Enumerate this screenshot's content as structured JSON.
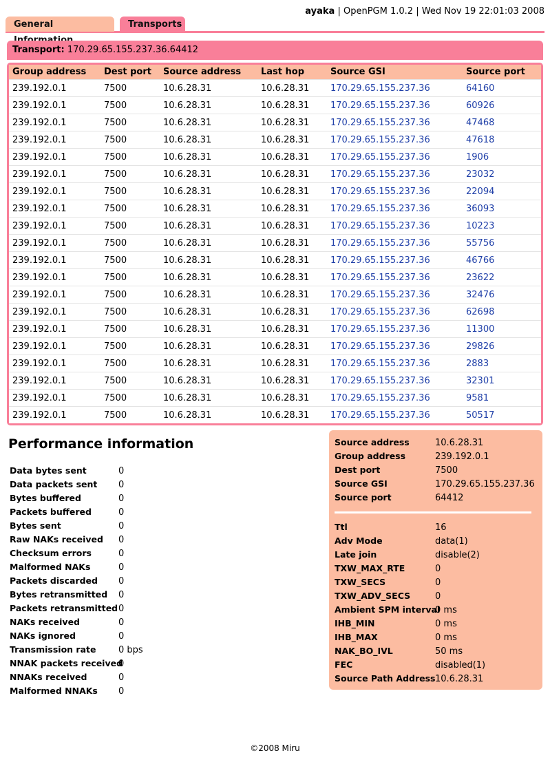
{
  "header": {
    "host": "ayaka",
    "product": "OpenPGM 1.0.2",
    "datetime": "Wed Nov 19 22:01:03 2008",
    "separator": "|"
  },
  "tabs": [
    {
      "label": "General Information"
    },
    {
      "label": "Transports"
    }
  ],
  "transport": {
    "label": "Transport:",
    "value": "170.29.65.155.237.36.64412"
  },
  "peers": {
    "columns": [
      "Group address",
      "Dest port",
      "Source address",
      "Last hop",
      "Source GSI",
      "Source port"
    ],
    "rows": [
      [
        "239.192.0.1",
        "7500",
        "10.6.28.31",
        "10.6.28.31",
        "170.29.65.155.237.36",
        "64160"
      ],
      [
        "239.192.0.1",
        "7500",
        "10.6.28.31",
        "10.6.28.31",
        "170.29.65.155.237.36",
        "60926"
      ],
      [
        "239.192.0.1",
        "7500",
        "10.6.28.31",
        "10.6.28.31",
        "170.29.65.155.237.36",
        "47468"
      ],
      [
        "239.192.0.1",
        "7500",
        "10.6.28.31",
        "10.6.28.31",
        "170.29.65.155.237.36",
        "47618"
      ],
      [
        "239.192.0.1",
        "7500",
        "10.6.28.31",
        "10.6.28.31",
        "170.29.65.155.237.36",
        "1906"
      ],
      [
        "239.192.0.1",
        "7500",
        "10.6.28.31",
        "10.6.28.31",
        "170.29.65.155.237.36",
        "23032"
      ],
      [
        "239.192.0.1",
        "7500",
        "10.6.28.31",
        "10.6.28.31",
        "170.29.65.155.237.36",
        "22094"
      ],
      [
        "239.192.0.1",
        "7500",
        "10.6.28.31",
        "10.6.28.31",
        "170.29.65.155.237.36",
        "36093"
      ],
      [
        "239.192.0.1",
        "7500",
        "10.6.28.31",
        "10.6.28.31",
        "170.29.65.155.237.36",
        "10223"
      ],
      [
        "239.192.0.1",
        "7500",
        "10.6.28.31",
        "10.6.28.31",
        "170.29.65.155.237.36",
        "55756"
      ],
      [
        "239.192.0.1",
        "7500",
        "10.6.28.31",
        "10.6.28.31",
        "170.29.65.155.237.36",
        "46766"
      ],
      [
        "239.192.0.1",
        "7500",
        "10.6.28.31",
        "10.6.28.31",
        "170.29.65.155.237.36",
        "23622"
      ],
      [
        "239.192.0.1",
        "7500",
        "10.6.28.31",
        "10.6.28.31",
        "170.29.65.155.237.36",
        "32476"
      ],
      [
        "239.192.0.1",
        "7500",
        "10.6.28.31",
        "10.6.28.31",
        "170.29.65.155.237.36",
        "62698"
      ],
      [
        "239.192.0.1",
        "7500",
        "10.6.28.31",
        "10.6.28.31",
        "170.29.65.155.237.36",
        "11300"
      ],
      [
        "239.192.0.1",
        "7500",
        "10.6.28.31",
        "10.6.28.31",
        "170.29.65.155.237.36",
        "29826"
      ],
      [
        "239.192.0.1",
        "7500",
        "10.6.28.31",
        "10.6.28.31",
        "170.29.65.155.237.36",
        "2883"
      ],
      [
        "239.192.0.1",
        "7500",
        "10.6.28.31",
        "10.6.28.31",
        "170.29.65.155.237.36",
        "32301"
      ],
      [
        "239.192.0.1",
        "7500",
        "10.6.28.31",
        "10.6.28.31",
        "170.29.65.155.237.36",
        "9581"
      ],
      [
        "239.192.0.1",
        "7500",
        "10.6.28.31",
        "10.6.28.31",
        "170.29.65.155.237.36",
        "50517"
      ]
    ]
  },
  "performance": {
    "title": "Performance information",
    "items": [
      {
        "label": "Data bytes sent",
        "value": "0"
      },
      {
        "label": "Data packets sent",
        "value": "0"
      },
      {
        "label": "Bytes buffered",
        "value": "0"
      },
      {
        "label": "Packets buffered",
        "value": "0"
      },
      {
        "label": "Bytes sent",
        "value": "0"
      },
      {
        "label": "Raw NAKs received",
        "value": "0"
      },
      {
        "label": "Checksum errors",
        "value": "0"
      },
      {
        "label": "Malformed NAKs",
        "value": "0"
      },
      {
        "label": "Packets discarded",
        "value": "0"
      },
      {
        "label": "Bytes retransmitted",
        "value": "0"
      },
      {
        "label": "Packets retransmitted",
        "value": "0"
      },
      {
        "label": "NAKs received",
        "value": "0"
      },
      {
        "label": "NAKs ignored",
        "value": "0"
      },
      {
        "label": "Transmission rate",
        "value": "0 bps"
      },
      {
        "label": "NNAK packets received",
        "value": "0"
      },
      {
        "label": "NNAKs received",
        "value": "0"
      },
      {
        "label": "Malformed NNAKs",
        "value": "0"
      }
    ]
  },
  "details": {
    "top": [
      {
        "label": "Source address",
        "value": "10.6.28.31"
      },
      {
        "label": "Group address",
        "value": "239.192.0.1"
      },
      {
        "label": "Dest port",
        "value": "7500"
      },
      {
        "label": "Source GSI",
        "value": "170.29.65.155.237.36"
      },
      {
        "label": "Source port",
        "value": "64412"
      }
    ],
    "bottom": [
      {
        "label": "Ttl",
        "value": "16"
      },
      {
        "label": "Adv Mode",
        "value": "data(1)"
      },
      {
        "label": "Late join",
        "value": "disable(2)"
      },
      {
        "label": "TXW_MAX_RTE",
        "value": "0"
      },
      {
        "label": "TXW_SECS",
        "value": "0"
      },
      {
        "label": "TXW_ADV_SECS",
        "value": "0"
      },
      {
        "label": "Ambient SPM interval",
        "value": "0 ms"
      },
      {
        "label": "IHB_MIN",
        "value": "0 ms"
      },
      {
        "label": "IHB_MAX",
        "value": "0 ms"
      },
      {
        "label": "NAK_BO_IVL",
        "value": "50 ms"
      },
      {
        "label": "FEC",
        "value": "disabled(1)"
      },
      {
        "label": "Source Path Address",
        "value": "10.6.28.31"
      }
    ]
  },
  "footer": {
    "text": "©2008 Miru"
  },
  "colors": {
    "tab_active": "#f97f99",
    "tab_inactive": "#fcbca1",
    "link": "#1f3fa8"
  }
}
